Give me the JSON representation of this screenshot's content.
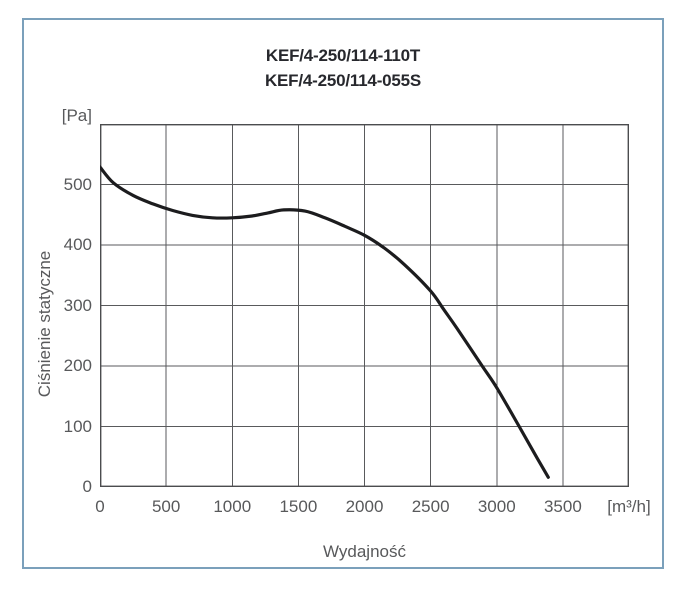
{
  "titles": {
    "line1": "KEF/4-250/114-110T",
    "line2": "KEF/4-250/114-055S"
  },
  "chart_data": {
    "type": "line",
    "title": "KEF/4-250/114-110T / KEF/4-250/114-055S",
    "xlabel": "Wydajność",
    "ylabel": "Ciśnienie statyczne",
    "x_unit_label": "[m³/h]",
    "y_unit_label": "[Pa]",
    "xlim": [
      0,
      4000
    ],
    "ylim": [
      0,
      600
    ],
    "x_tick_step": 500,
    "y_tick_step": 100,
    "x_tick_labels": [
      "0",
      "500",
      "1000",
      "1500",
      "2000",
      "2500",
      "3000",
      "3500"
    ],
    "y_tick_labels": [
      "0",
      "100",
      "200",
      "300",
      "400",
      "500"
    ],
    "grid": true,
    "legend": "none",
    "colors": {
      "curve": "#1c1c1e",
      "grid": "#595a5c",
      "plot_border": "#4b4c4e",
      "text": "#58595b",
      "title": "#27282d",
      "frame_border": "#7ba0bb"
    },
    "series": [
      {
        "name": "KEF/4-250/114 static pressure curve",
        "points": [
          [
            0,
            529
          ],
          [
            100,
            503
          ],
          [
            250,
            482
          ],
          [
            400,
            468
          ],
          [
            550,
            457
          ],
          [
            700,
            449
          ],
          [
            850,
            445
          ],
          [
            1000,
            445
          ],
          [
            1150,
            448
          ],
          [
            1270,
            453
          ],
          [
            1390,
            458
          ],
          [
            1550,
            456
          ],
          [
            1700,
            445
          ],
          [
            1850,
            431
          ],
          [
            2000,
            416
          ],
          [
            2150,
            395
          ],
          [
            2300,
            368
          ],
          [
            2500,
            324
          ],
          [
            2600,
            293
          ],
          [
            2700,
            262
          ],
          [
            2890,
            200
          ],
          [
            3000,
            164
          ],
          [
            3170,
            100
          ],
          [
            3300,
            50
          ],
          [
            3390,
            16
          ]
        ]
      }
    ]
  }
}
